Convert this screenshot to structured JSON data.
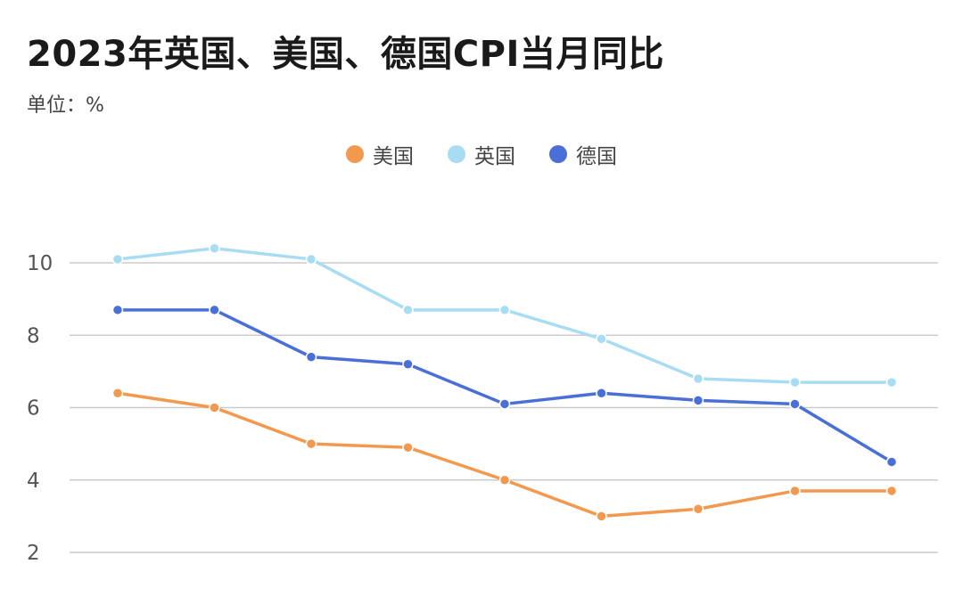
{
  "header": {
    "title": "2023年英国、美国、德国CPI当月同比",
    "unit": "单位：%"
  },
  "colors": {
    "us": "#F3994F",
    "uk": "#A8DCF3",
    "de": "#4A6FD6",
    "grid": "#cccccc"
  },
  "chart_data": {
    "type": "line",
    "title": "2023年英国、美国、德国CPI当月同比",
    "ylabel": "",
    "xlabel": "",
    "ylim": [
      2,
      10
    ],
    "yticks": [
      2,
      4,
      6,
      8,
      10
    ],
    "grid": true,
    "legend_position": "top-center",
    "x": [
      1,
      2,
      3,
      4,
      5,
      6,
      7,
      8,
      9
    ],
    "series": [
      {
        "key": "us",
        "name": "美国",
        "color": "#F3994F",
        "values": [
          6.4,
          6.0,
          5.0,
          4.9,
          4.0,
          3.0,
          3.2,
          3.7,
          3.7
        ]
      },
      {
        "key": "uk",
        "name": "英国",
        "color": "#A8DCF3",
        "values": [
          10.1,
          10.4,
          10.1,
          8.7,
          8.7,
          7.9,
          6.8,
          6.7,
          6.7
        ]
      },
      {
        "key": "de",
        "name": "德国",
        "color": "#4A6FD6",
        "values": [
          8.7,
          8.7,
          7.4,
          7.2,
          6.1,
          6.4,
          6.2,
          6.1,
          4.5
        ]
      }
    ]
  }
}
